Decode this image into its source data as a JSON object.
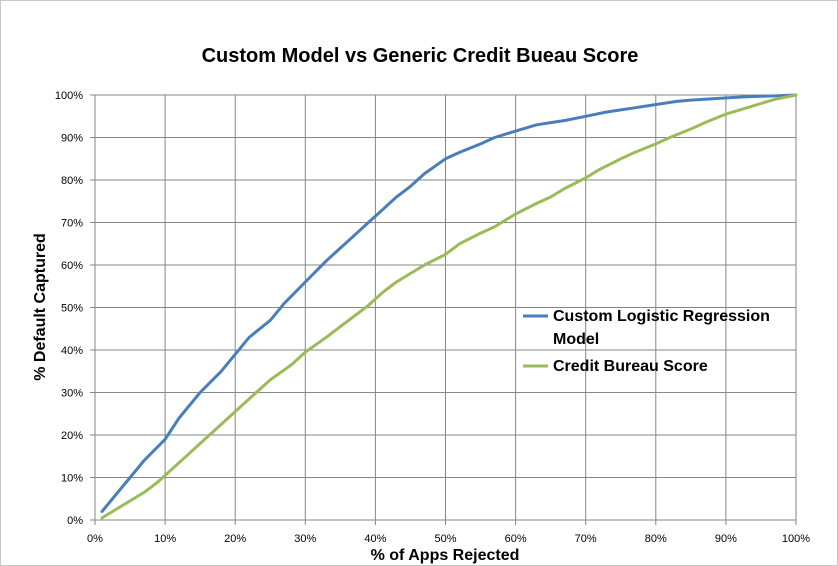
{
  "chart_data": {
    "type": "line",
    "title": "Custom Model vs Generic Credit Bueau Score",
    "xlabel": "% of Apps Rejected",
    "ylabel": "% Default Captured",
    "xlim": [
      0,
      100
    ],
    "ylim": [
      0,
      100
    ],
    "x_ticks": [
      "0%",
      "10%",
      "20%",
      "30%",
      "40%",
      "50%",
      "60%",
      "70%",
      "80%",
      "90%",
      "100%"
    ],
    "y_ticks": [
      "0%",
      "10%",
      "20%",
      "30%",
      "40%",
      "50%",
      "60%",
      "70%",
      "80%",
      "90%",
      "100%"
    ],
    "grid": true,
    "legend_position": "right",
    "series": [
      {
        "name": "Custom Logistic Regression Model",
        "color": "#4a7ebb",
        "x": [
          1,
          3,
          5,
          7,
          10,
          12,
          15,
          18,
          20,
          22,
          25,
          27,
          30,
          33,
          35,
          37,
          39,
          41,
          43,
          45,
          47,
          50,
          52,
          55,
          57,
          60,
          63,
          65,
          67,
          70,
          73,
          75,
          77,
          79,
          81,
          83,
          85,
          87,
          89,
          91,
          93,
          95,
          97,
          100
        ],
        "y": [
          2,
          6,
          10,
          14,
          19,
          24,
          30,
          35,
          39,
          43,
          47,
          51,
          56,
          61,
          64,
          67,
          70,
          73,
          76,
          78.5,
          81.5,
          85,
          86.5,
          88.5,
          90,
          91.5,
          93,
          93.5,
          94,
          95,
          96,
          96.5,
          97,
          97.5,
          98,
          98.5,
          98.8,
          99,
          99.2,
          99.4,
          99.6,
          99.7,
          99.8,
          100
        ]
      },
      {
        "name": "Credit Bureau Score",
        "color": "#9bbb59",
        "x": [
          1,
          3,
          5,
          7,
          9,
          11,
          13,
          15,
          18,
          20,
          22,
          25,
          28,
          30,
          33,
          35,
          37,
          39,
          41,
          43,
          45,
          47,
          50,
          52,
          55,
          57,
          60,
          63,
          65,
          67,
          70,
          72,
          75,
          77,
          80,
          82,
          85,
          87,
          90,
          92,
          95,
          97,
          100
        ],
        "y": [
          0.5,
          2.5,
          4.5,
          6.5,
          9,
          12,
          15,
          18,
          22.5,
          25.5,
          28.5,
          33,
          36.5,
          39.5,
          43,
          45.5,
          48,
          50.5,
          53.5,
          56,
          58,
          60,
          62.5,
          65,
          67.5,
          69,
          72,
          74.5,
          76,
          78,
          80.5,
          82.5,
          85,
          86.5,
          88.5,
          90,
          92,
          93.5,
          95.5,
          96.5,
          98,
          99,
          100
        ]
      }
    ]
  }
}
